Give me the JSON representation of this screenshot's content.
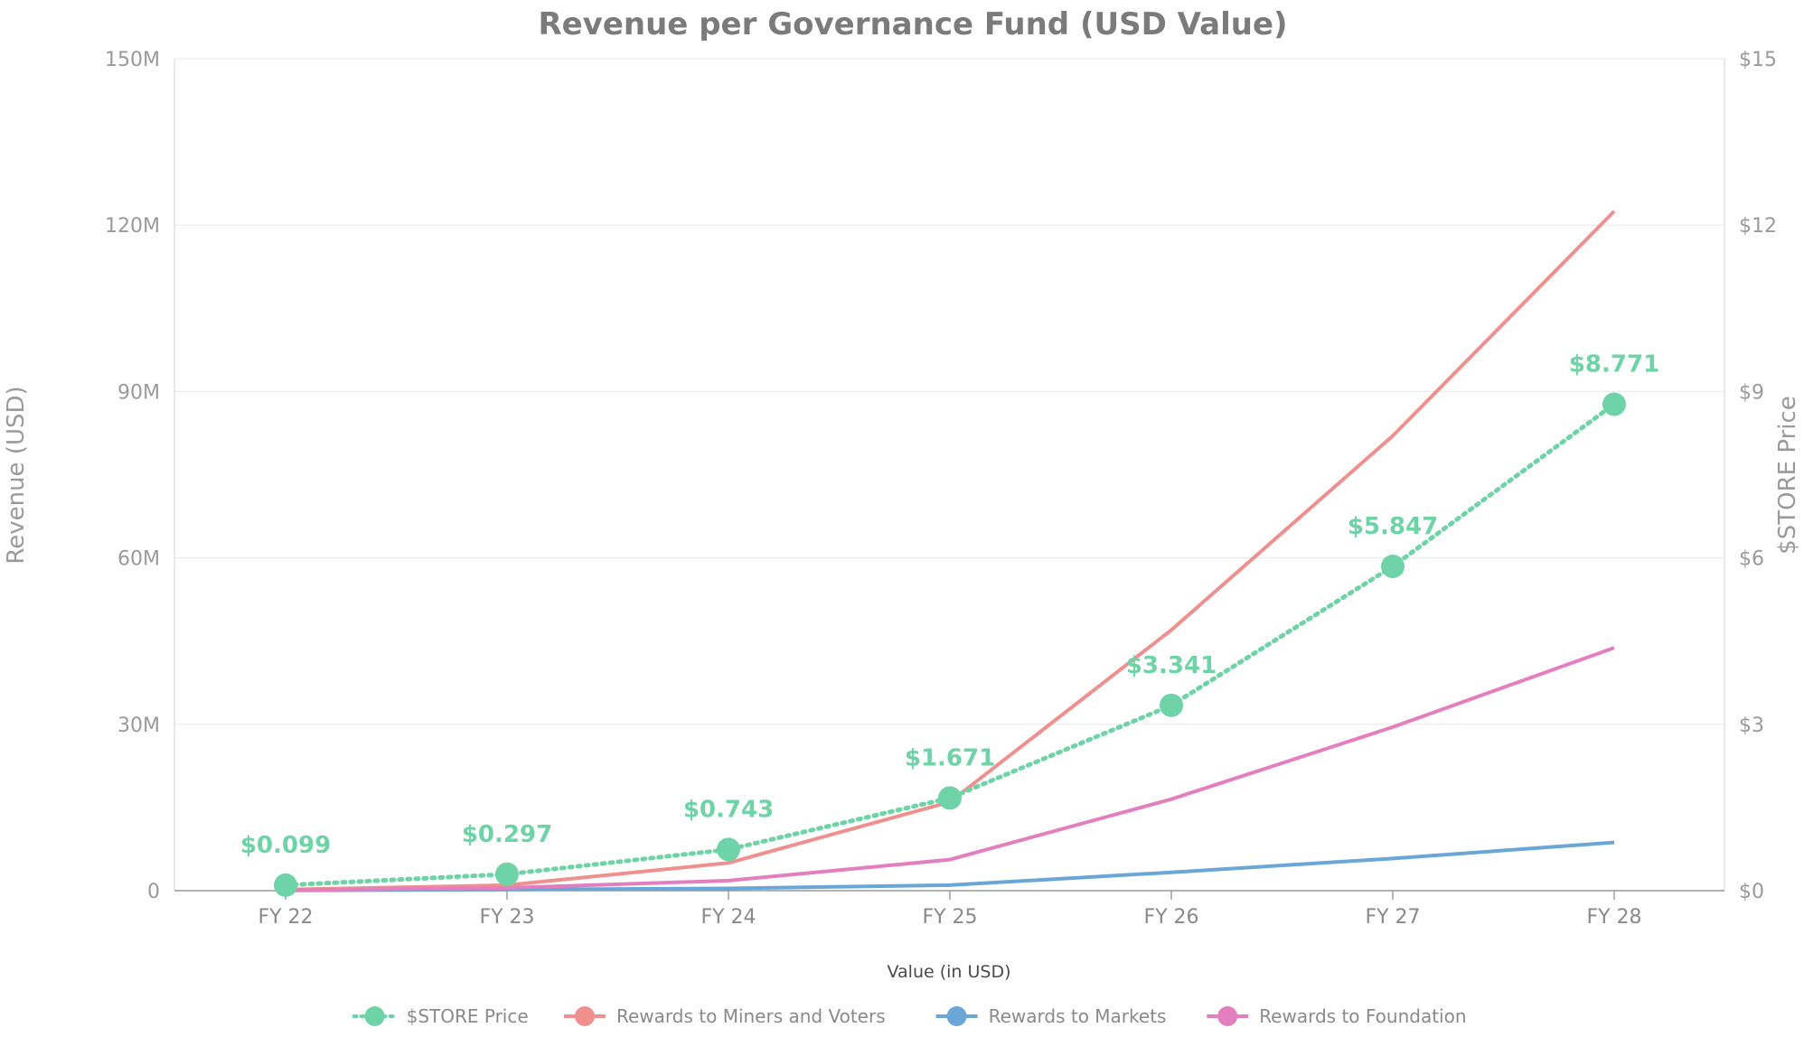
{
  "chart_data": {
    "type": "line",
    "title": "Revenue per Governance Fund (USD Value)",
    "xlabel": "Value (in USD)",
    "ylabel": "Revenue (USD)",
    "y2label": "$STORE Price",
    "categories": [
      "FY 22",
      "FY 23",
      "FY 24",
      "FY 25",
      "FY 26",
      "FY 27",
      "FY 28"
    ],
    "ylim": [
      0,
      150000000
    ],
    "y_ticks": [
      0,
      30000000,
      60000000,
      90000000,
      120000000,
      150000000
    ],
    "y_tick_labels": [
      "0",
      "30M",
      "60M",
      "90M",
      "120M",
      "150M"
    ],
    "y2lim": [
      0,
      15
    ],
    "y2_ticks": [
      0,
      3,
      6,
      9,
      12,
      15
    ],
    "y2_tick_labels": [
      "$0",
      "$3",
      "$6",
      "$9",
      "$12",
      "$15"
    ],
    "grid": true,
    "legend_position": "bottom",
    "series": [
      {
        "name": "$STORE Price",
        "axis": "right",
        "style": "dotted-with-markers",
        "color": "#6fd3a8",
        "values": [
          0.099,
          0.297,
          0.743,
          1.671,
          3.341,
          5.847,
          8.771
        ],
        "data_labels": [
          "$0.099",
          "$0.297",
          "$0.743",
          "$1.671",
          "$3.341",
          "$5.847",
          "$8.771"
        ]
      },
      {
        "name": "Rewards to Miners and Voters",
        "axis": "left",
        "style": "solid",
        "color": "#f0908e",
        "values": [
          200000,
          1000000,
          5000000,
          16000000,
          47000000,
          82000000,
          122500000
        ]
      },
      {
        "name": "Rewards to Markets",
        "axis": "left",
        "style": "solid",
        "color": "#6aa6d6",
        "values": [
          50000,
          200000,
          400000,
          1000000,
          3300000,
          5800000,
          8700000
        ]
      },
      {
        "name": "Rewards to Foundation",
        "axis": "left",
        "style": "solid",
        "color": "#e47fbf",
        "values": [
          100000,
          500000,
          1800000,
          5600000,
          16500000,
          29500000,
          43800000
        ]
      }
    ]
  }
}
